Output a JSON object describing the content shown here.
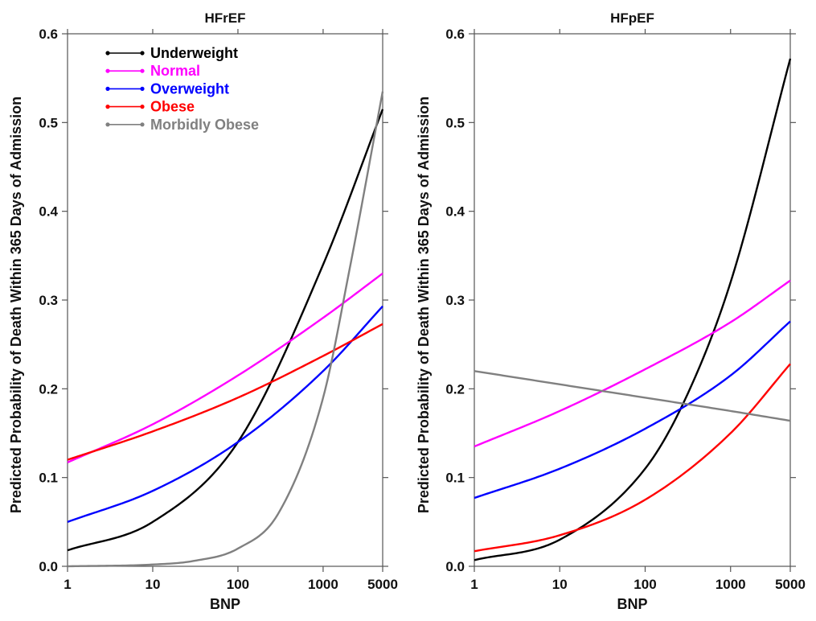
{
  "chart_data": [
    {
      "type": "line",
      "title": "HFrEF",
      "xlabel": "BNP",
      "ylabel": "Predicted Probability of Death Within 365 Days of Admission",
      "x_scale": "log",
      "xlim": [
        1,
        5000
      ],
      "ylim": [
        0,
        0.6
      ],
      "xticks": [
        1,
        10,
        100,
        1000,
        5000
      ],
      "xtick_labels": [
        "1",
        "10",
        "100",
        "1000",
        "5000"
      ],
      "yticks": [
        0,
        0.1,
        0.2,
        0.3,
        0.4,
        0.5,
        0.6
      ],
      "ytick_labels": [
        "0.0",
        "0.1",
        "0.2",
        "0.3",
        "0.4",
        "0.5",
        "0.6"
      ],
      "grid": false,
      "legend_position": "top-left",
      "series": [
        {
          "name": "Underweight",
          "color": "#000000",
          "x": [
            1,
            10,
            100,
            1000,
            5000
          ],
          "y": [
            0.018,
            0.05,
            0.14,
            0.34,
            0.515
          ]
        },
        {
          "name": "Normal",
          "color": "#ff00ff",
          "x": [
            1,
            10,
            100,
            1000,
            5000
          ],
          "y": [
            0.117,
            0.16,
            0.215,
            0.28,
            0.33
          ]
        },
        {
          "name": "Overweight",
          "color": "#0000ff",
          "x": [
            1,
            10,
            100,
            1000,
            5000
          ],
          "y": [
            0.05,
            0.085,
            0.14,
            0.22,
            0.293
          ]
        },
        {
          "name": "Obese",
          "color": "#ff0000",
          "x": [
            1,
            10,
            100,
            1000,
            5000
          ],
          "y": [
            0.12,
            0.152,
            0.19,
            0.237,
            0.273
          ]
        },
        {
          "name": "Morbidly Obese",
          "color": "#808080",
          "x": [
            1,
            10,
            30,
            100,
            300,
            1000,
            2000,
            5000
          ],
          "y": [
            0.0,
            0.002,
            0.006,
            0.02,
            0.06,
            0.19,
            0.33,
            0.535
          ]
        }
      ]
    },
    {
      "type": "line",
      "title": "HFpEF",
      "xlabel": "BNP",
      "ylabel": "Predicted Probability of Death Within 365 Days of Admission",
      "x_scale": "log",
      "xlim": [
        1,
        5000
      ],
      "ylim": [
        0,
        0.6
      ],
      "xticks": [
        1,
        10,
        100,
        1000,
        5000
      ],
      "xtick_labels": [
        "1",
        "10",
        "100",
        "1000",
        "5000"
      ],
      "yticks": [
        0,
        0.1,
        0.2,
        0.3,
        0.4,
        0.5,
        0.6
      ],
      "ytick_labels": [
        "0.0",
        "0.1",
        "0.2",
        "0.3",
        "0.4",
        "0.5",
        "0.6"
      ],
      "grid": false,
      "series": [
        {
          "name": "Underweight",
          "color": "#000000",
          "x": [
            1,
            10,
            100,
            300,
            1000,
            5000
          ],
          "y": [
            0.007,
            0.03,
            0.11,
            0.19,
            0.32,
            0.572
          ]
        },
        {
          "name": "Normal",
          "color": "#ff00ff",
          "x": [
            1,
            10,
            100,
            1000,
            5000
          ],
          "y": [
            0.135,
            0.175,
            0.222,
            0.275,
            0.322
          ]
        },
        {
          "name": "Overweight",
          "color": "#0000ff",
          "x": [
            1,
            10,
            100,
            1000,
            5000
          ],
          "y": [
            0.077,
            0.11,
            0.155,
            0.215,
            0.276
          ]
        },
        {
          "name": "Obese",
          "color": "#ff0000",
          "x": [
            1,
            10,
            100,
            1000,
            5000
          ],
          "y": [
            0.017,
            0.035,
            0.075,
            0.15,
            0.228
          ]
        },
        {
          "name": "Morbidly Obese",
          "color": "#808080",
          "x": [
            1,
            10,
            100,
            1000,
            5000
          ],
          "y": [
            0.22,
            0.205,
            0.19,
            0.175,
            0.164
          ]
        }
      ]
    }
  ]
}
